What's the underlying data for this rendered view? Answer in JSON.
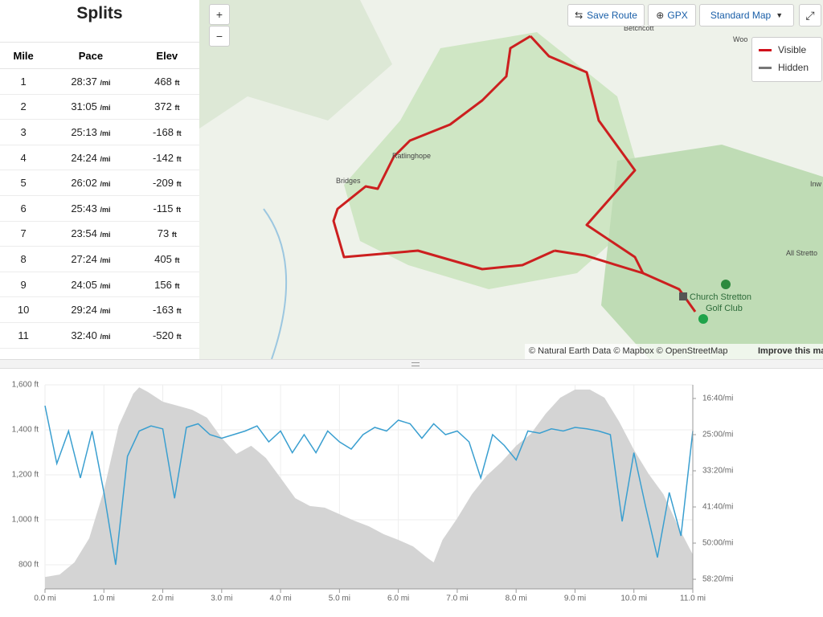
{
  "splits": {
    "title": "Splits",
    "columns": [
      "Mile",
      "Pace",
      "Elev"
    ],
    "rows": [
      {
        "mile": "1",
        "pace": "28:37",
        "pace_unit": "/mi",
        "elev": "468",
        "elev_unit": "ft"
      },
      {
        "mile": "2",
        "pace": "31:05",
        "pace_unit": "/mi",
        "elev": "372",
        "elev_unit": "ft"
      },
      {
        "mile": "3",
        "pace": "25:13",
        "pace_unit": "/mi",
        "elev": "-168",
        "elev_unit": "ft"
      },
      {
        "mile": "4",
        "pace": "24:24",
        "pace_unit": "/mi",
        "elev": "-142",
        "elev_unit": "ft"
      },
      {
        "mile": "5",
        "pace": "26:02",
        "pace_unit": "/mi",
        "elev": "-209",
        "elev_unit": "ft"
      },
      {
        "mile": "6",
        "pace": "25:43",
        "pace_unit": "/mi",
        "elev": "-115",
        "elev_unit": "ft"
      },
      {
        "mile": "7",
        "pace": "23:54",
        "pace_unit": "/mi",
        "elev": "73",
        "elev_unit": "ft"
      },
      {
        "mile": "8",
        "pace": "27:24",
        "pace_unit": "/mi",
        "elev": "405",
        "elev_unit": "ft"
      },
      {
        "mile": "9",
        "pace": "24:05",
        "pace_unit": "/mi",
        "elev": "156",
        "elev_unit": "ft"
      },
      {
        "mile": "10",
        "pace": "29:24",
        "pace_unit": "/mi",
        "elev": "-163",
        "elev_unit": "ft"
      },
      {
        "mile": "11",
        "pace": "32:40",
        "pace_unit": "/mi",
        "elev": "-520",
        "elev_unit": "ft"
      }
    ]
  },
  "map": {
    "zoom_in": "+",
    "zoom_out": "−",
    "save_route": "Save Route",
    "gpx": "GPX",
    "map_style": "Standard Map",
    "legend": [
      {
        "name": "Visible",
        "color": "#d0101b"
      },
      {
        "name": "Hidden",
        "color": "#777777"
      }
    ],
    "places": {
      "betchcott": "Betchcott",
      "woo": "Woo",
      "ratlinghope": "Ratlinghope",
      "bridges": "Bridges",
      "all_stretton": "All Stretto",
      "church_stretton": "Church Stretton",
      "golf_club": "Golf Club",
      "inw": "Inw"
    },
    "attribution": "© Natural Earth Data © Mapbox © OpenStreetMap",
    "improve": "Improve this ma"
  },
  "chart_data": {
    "type": "line",
    "xlim": [
      0,
      11
    ],
    "xticks": [
      {
        "value": 0,
        "label": "0.0 mi"
      },
      {
        "value": 1,
        "label": "1.0 mi"
      },
      {
        "value": 2,
        "label": "2.0 mi"
      },
      {
        "value": 3,
        "label": "3.0 mi"
      },
      {
        "value": 4,
        "label": "4.0 mi"
      },
      {
        "value": 5,
        "label": "5.0 mi"
      },
      {
        "value": 6,
        "label": "6.0 mi"
      },
      {
        "value": 7,
        "label": "7.0 mi"
      },
      {
        "value": 8,
        "label": "8.0 mi"
      },
      {
        "value": 9,
        "label": "9.0 mi"
      },
      {
        "value": 10,
        "label": "10.0 mi"
      },
      {
        "value": 11,
        "label": "11.0 mi"
      }
    ],
    "ylim": [
      693,
      1600
    ],
    "yticks": [
      {
        "value": 800,
        "label": "800 ft"
      },
      {
        "value": 1000,
        "label": "1,000 ft"
      },
      {
        "value": 1200,
        "label": "1,200 ft"
      },
      {
        "value": 1400,
        "label": "1,400 ft"
      },
      {
        "value": 1600,
        "label": "1,600 ft"
      }
    ],
    "y2lim": [
      3633,
      811
    ],
    "y2ticks": [
      {
        "value": 1000,
        "label": "16:40/mi"
      },
      {
        "value": 1500,
        "label": "25:00/mi"
      },
      {
        "value": 2000,
        "label": "33:20/mi"
      },
      {
        "value": 2500,
        "label": "41:40/mi"
      },
      {
        "value": 3000,
        "label": "50:00/mi"
      },
      {
        "value": 3500,
        "label": "58:20/mi"
      }
    ],
    "grid": true,
    "series": [
      {
        "kind": "area",
        "color": "#d4d4d4",
        "x": [
          0,
          0.25,
          0.5,
          0.75,
          1,
          1.25,
          1.5,
          1.6,
          1.75,
          2,
          2.25,
          2.5,
          2.75,
          3,
          3.25,
          3.5,
          3.75,
          4,
          4.25,
          4.5,
          4.75,
          5,
          5.25,
          5.5,
          5.75,
          6,
          6.25,
          6.5,
          6.6,
          6.75,
          7,
          7.25,
          7.5,
          7.75,
          8,
          8.25,
          8.5,
          8.75,
          9,
          9.25,
          9.5,
          9.75,
          10,
          10.25,
          10.5,
          10.75,
          11
        ],
        "values": [
          746,
          757,
          811,
          918,
          1132,
          1418,
          1561,
          1589,
          1568,
          1525,
          1507,
          1489,
          1454,
          1364,
          1293,
          1329,
          1275,
          1186,
          1096,
          1061,
          1054,
          1025,
          996,
          971,
          936,
          911,
          882,
          829,
          811,
          911,
          1007,
          1114,
          1196,
          1257,
          1329,
          1382,
          1471,
          1543,
          1579,
          1579,
          1543,
          1436,
          1311,
          1204,
          1114,
          971,
          846
        ]
      },
      {
        "kind": "line",
        "color": "#3a9fd0",
        "axis": "y2",
        "x": [
          0,
          0.2,
          0.4,
          0.6,
          0.8,
          1,
          1.2,
          1.4,
          1.6,
          1.8,
          2,
          2.2,
          2.4,
          2.6,
          2.8,
          3,
          3.2,
          3.4,
          3.6,
          3.8,
          4,
          4.2,
          4.4,
          4.6,
          4.8,
          5,
          5.2,
          5.4,
          5.6,
          5.8,
          6,
          6.2,
          6.4,
          6.6,
          6.8,
          7,
          7.2,
          7.4,
          7.6,
          7.8,
          8,
          8.2,
          8.4,
          8.6,
          8.8,
          9,
          9.2,
          9.4,
          9.6,
          9.8,
          10,
          10.2,
          10.4,
          10.6,
          10.8,
          11
        ],
        "values": [
          1100,
          1900,
          1450,
          2100,
          1450,
          2300,
          3300,
          1800,
          1450,
          1380,
          1420,
          2380,
          1400,
          1350,
          1500,
          1550,
          1500,
          1450,
          1380,
          1600,
          1450,
          1750,
          1500,
          1750,
          1450,
          1600,
          1700,
          1500,
          1400,
          1450,
          1300,
          1350,
          1550,
          1350,
          1500,
          1450,
          1600,
          2100,
          1500,
          1650,
          1850,
          1450,
          1480,
          1420,
          1450,
          1400,
          1420,
          1450,
          1500,
          2700,
          1750,
          2500,
          3200,
          2300,
          2900,
          1450
        ]
      }
    ]
  }
}
